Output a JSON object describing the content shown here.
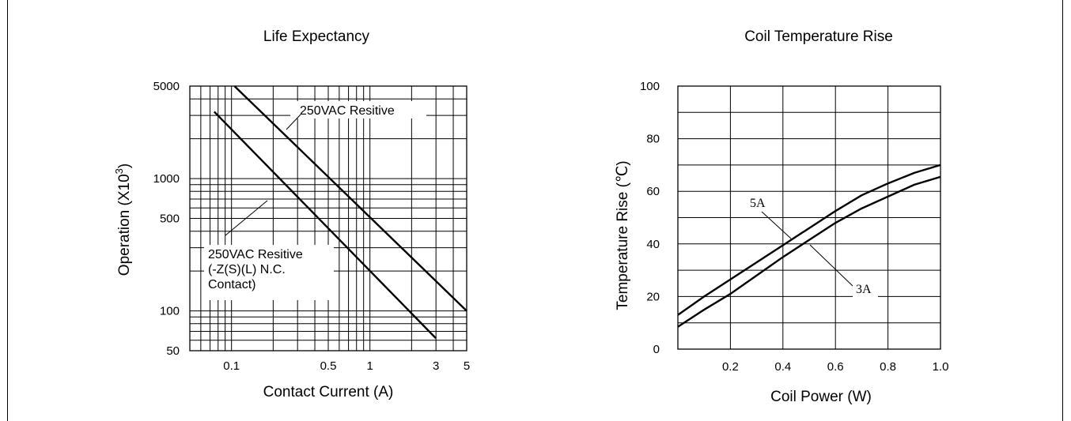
{
  "chart_data": [
    {
      "type": "line",
      "title": "Life Expectancy",
      "xlabel": "Contact Current (A)",
      "ylabel_main": "Operation (X10",
      "ylabel_sup": "3",
      "ylabel_end": ")",
      "x_scale": "log",
      "y_scale": "log",
      "xlim": [
        0.05,
        5
      ],
      "ylim": [
        50,
        5000
      ],
      "x_ticks": [
        {
          "v": 0.1,
          "label": "0.1"
        },
        {
          "v": 0.5,
          "label": "0.5"
        },
        {
          "v": 1,
          "label": "1"
        },
        {
          "v": 3,
          "label": "3"
        },
        {
          "v": 5,
          "label": "5"
        }
      ],
      "y_ticks": [
        {
          "v": 5000,
          "label": "5000"
        },
        {
          "v": 1000,
          "label": "1000"
        },
        {
          "v": 500,
          "label": "500"
        },
        {
          "v": 100,
          "label": "100"
        },
        {
          "v": 50,
          "label": "50"
        }
      ],
      "grid": true,
      "series": [
        {
          "name": "250VAC Resitive",
          "x": [
            0.105,
            5
          ],
          "y": [
            5000,
            100
          ]
        },
        {
          "name": "250VAC Resitive (-Z(S)(L) N.C. Contact)",
          "x": [
            0.075,
            3
          ],
          "y": [
            3200,
            62
          ]
        }
      ],
      "annotations": [
        {
          "id": "a1",
          "lines": [
            "250VAC Resitive"
          ]
        },
        {
          "id": "a2",
          "lines": [
            "250VAC Resitive",
            "(-Z(S)(L)   N.C.",
            "Contact)"
          ]
        }
      ]
    },
    {
      "type": "line",
      "title": "Coil Temperature Rise",
      "xlabel": "Coil Power (W)",
      "ylabel": "Temperature Rise (℃)",
      "xlim": [
        0,
        1.0
      ],
      "ylim": [
        0,
        100
      ],
      "x_ticks": [
        {
          "v": 0.2,
          "label": "0.2"
        },
        {
          "v": 0.4,
          "label": "0.4"
        },
        {
          "v": 0.6,
          "label": "0.6"
        },
        {
          "v": 0.8,
          "label": "0.8"
        },
        {
          "v": 1.0,
          "label": "1.0"
        }
      ],
      "y_ticks": [
        {
          "v": 0,
          "label": "0"
        },
        {
          "v": 20,
          "label": "20"
        },
        {
          "v": 40,
          "label": "40"
        },
        {
          "v": 60,
          "label": "60"
        },
        {
          "v": 80,
          "label": "80"
        },
        {
          "v": 100,
          "label": "100"
        }
      ],
      "grid": true,
      "series": [
        {
          "name": "5A",
          "x": [
            0,
            0.1,
            0.2,
            0.3,
            0.4,
            0.5,
            0.6,
            0.7,
            0.8,
            0.9,
            1.0
          ],
          "y": [
            13,
            20,
            26.5,
            33,
            39.5,
            46,
            52.5,
            58.5,
            63,
            67,
            70
          ]
        },
        {
          "name": "3A",
          "x": [
            0,
            0.1,
            0.2,
            0.3,
            0.4,
            0.5,
            0.6,
            0.7,
            0.8,
            0.9,
            1.0
          ],
          "y": [
            8.5,
            15,
            21,
            28,
            35,
            41.5,
            48,
            53.5,
            58,
            62.5,
            65.5
          ]
        }
      ]
    }
  ]
}
